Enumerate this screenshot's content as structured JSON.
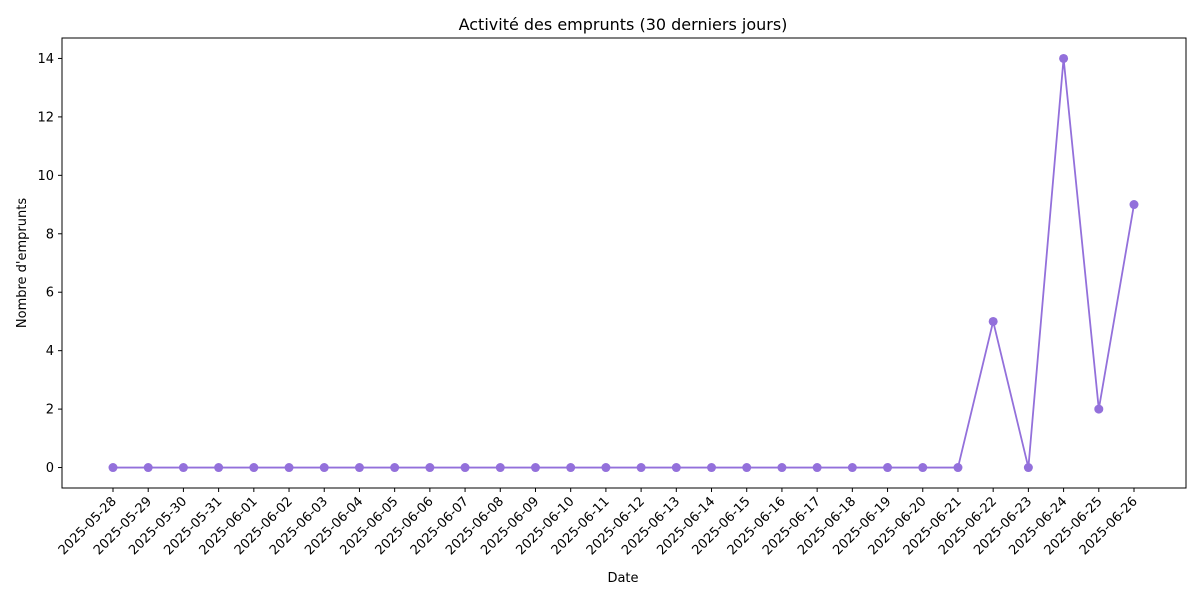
{
  "chart_data": {
    "type": "line",
    "title": "Activité des emprunts (30 derniers jours)",
    "xlabel": "Date",
    "ylabel": "Nombre d'emprunts",
    "ylim": [
      -0.7,
      14.7
    ],
    "yticks": [
      0,
      2,
      4,
      6,
      8,
      10,
      12,
      14
    ],
    "grid": false,
    "legend": false,
    "color": "#9370DB",
    "categories": [
      "2025-05-28",
      "2025-05-29",
      "2025-05-30",
      "2025-05-31",
      "2025-06-01",
      "2025-06-02",
      "2025-06-03",
      "2025-06-04",
      "2025-06-05",
      "2025-06-06",
      "2025-06-07",
      "2025-06-08",
      "2025-06-09",
      "2025-06-10",
      "2025-06-11",
      "2025-06-12",
      "2025-06-13",
      "2025-06-14",
      "2025-06-15",
      "2025-06-16",
      "2025-06-17",
      "2025-06-18",
      "2025-06-19",
      "2025-06-20",
      "2025-06-21",
      "2025-06-22",
      "2025-06-23",
      "2025-06-24",
      "2025-06-25",
      "2025-06-26"
    ],
    "series": [
      {
        "values": [
          0,
          0,
          0,
          0,
          0,
          0,
          0,
          0,
          0,
          0,
          0,
          0,
          0,
          0,
          0,
          0,
          0,
          0,
          0,
          0,
          0,
          0,
          0,
          0,
          0,
          5,
          0,
          14,
          2,
          9
        ]
      }
    ]
  }
}
